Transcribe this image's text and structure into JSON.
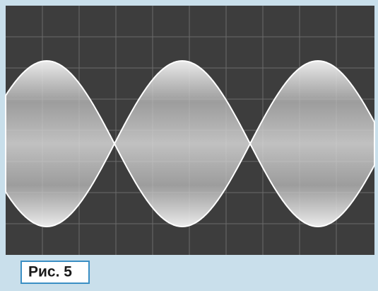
{
  "figure": {
    "label": "Рис. 5"
  }
}
